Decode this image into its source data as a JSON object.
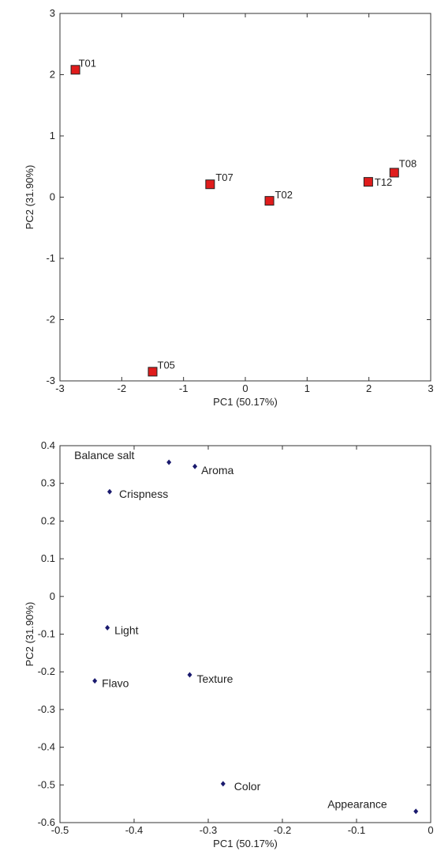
{
  "chart_data": [
    {
      "type": "scatter",
      "title": "",
      "xlabel": "PC1 (50.17%)",
      "ylabel": "PC2 (31.90%)",
      "xlim": [
        -3,
        3
      ],
      "ylim": [
        -3,
        3
      ],
      "xticks": [
        "-3",
        "-2",
        "-1",
        "0",
        "1",
        "2",
        "3"
      ],
      "yticks": [
        "3",
        "2",
        "1",
        "0",
        "-1",
        "-2",
        "-3"
      ],
      "grid": false,
      "marker": "square",
      "marker_color": "#e01c1c",
      "points": [
        {
          "label": "T01",
          "x": -2.75,
          "y": 2.08
        },
        {
          "label": "T05",
          "x": -1.5,
          "y": -2.85
        },
        {
          "label": "T07",
          "x": -0.57,
          "y": 0.21
        },
        {
          "label": "T02",
          "x": 0.39,
          "y": -0.06
        },
        {
          "label": "T12",
          "x": 1.99,
          "y": 0.25
        },
        {
          "label": "T08",
          "x": 2.41,
          "y": 0.4
        }
      ]
    },
    {
      "type": "scatter",
      "title": "",
      "xlabel": "PC1 (50.17%)",
      "ylabel": "PC2 (31.90%)",
      "xlim": [
        -0.5,
        0
      ],
      "ylim": [
        -0.6,
        0.4
      ],
      "xticks": [
        "-0.5",
        "-0.4",
        "-0.3",
        "-0.2",
        "-0.1",
        "0"
      ],
      "yticks": [
        "0.4",
        "0.3",
        "0.2",
        "0.1",
        "0",
        "-0.1",
        "-0.2",
        "-0.3",
        "-0.4",
        "-0.5",
        "-0.6"
      ],
      "grid": false,
      "marker": "diamond",
      "marker_color": "#1a1a6e",
      "points": [
        {
          "label": "Balance salt",
          "x": -0.353,
          "y": 0.356
        },
        {
          "label": "Aroma",
          "x": -0.318,
          "y": 0.345
        },
        {
          "label": "Crispness",
          "x": -0.433,
          "y": 0.278
        },
        {
          "label": "Light",
          "x": -0.436,
          "y": -0.083
        },
        {
          "label": "Flavo",
          "x": -0.453,
          "y": -0.224
        },
        {
          "label": "Texture",
          "x": -0.325,
          "y": -0.208
        },
        {
          "label": "Color",
          "x": -0.28,
          "y": -0.497
        },
        {
          "label": "Appearance",
          "x": -0.02,
          "y": -0.57
        }
      ]
    }
  ]
}
